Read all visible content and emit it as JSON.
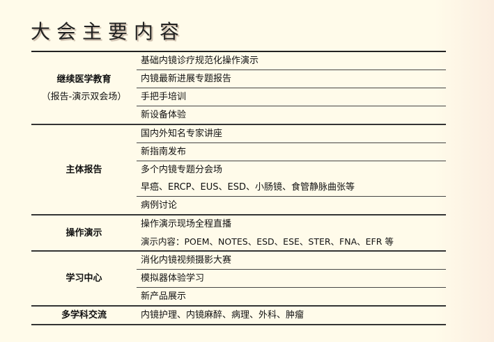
{
  "title": "大会主要内容",
  "groups": [
    {
      "label": "继续医学教育",
      "sublabel": "（报告-演示双会场）",
      "items": [
        "基础内镜诊疗规范化操作演示",
        "内镜最新进展专题报告",
        "手把手培训",
        "新设备体验"
      ]
    },
    {
      "label": "主体报告",
      "items": [
        "国内外知名专家讲座",
        "新指南发布",
        "多个内镜专题分会场",
        "早癌、ERCP、EUS、ESD、小肠镜、食管静脉曲张等",
        "病例讨论"
      ]
    },
    {
      "label": "操作演示",
      "items": [
        "操作演示现场全程直播",
        "演示内容：POEM、NOTES、ESD、ESE、STER、FNA、EFR 等"
      ]
    },
    {
      "label": "学习中心",
      "items": [
        "消化内镜视频摄影大赛",
        "模拟器体验学习",
        "新产品展示"
      ]
    },
    {
      "label": "多学科交流",
      "items": [
        "内镜护理、内镜麻醉、病理、外科、肿瘤"
      ]
    }
  ]
}
